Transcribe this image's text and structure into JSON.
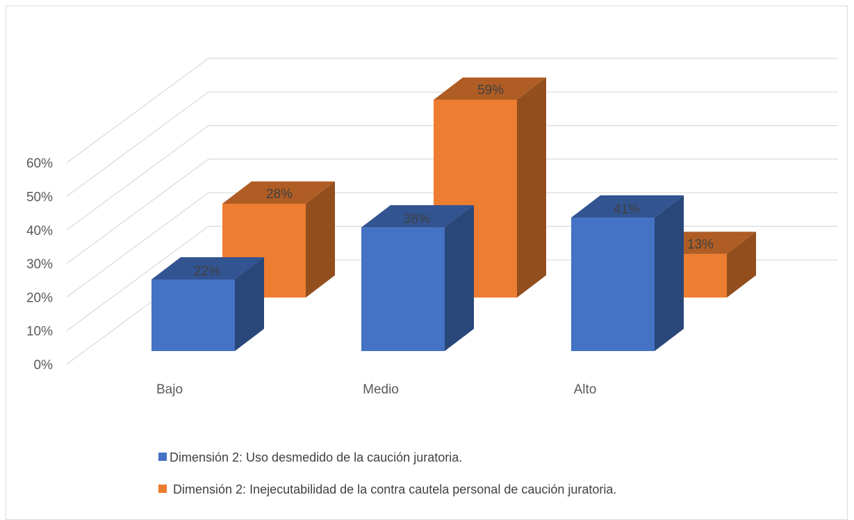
{
  "chart_data": {
    "type": "bar",
    "categories": [
      "Bajo",
      "Medio",
      "Alto"
    ],
    "series": [
      {
        "name": "Dimensión 2: Uso desmedido de la caución juratoria.",
        "values": [
          22,
          38,
          41
        ],
        "labels": [
          "22%",
          "38%",
          "41%"
        ],
        "color": "#4472C4"
      },
      {
        "name": "Dimensión 2: Inejecutabilidad de la contra cautela personal de caución juratoria.",
        "values": [
          28,
          59,
          13
        ],
        "labels": [
          "28%",
          "59%",
          "13%"
        ],
        "color": "#ED7D31"
      }
    ],
    "y_ticks": [
      "0%",
      "10%",
      "20%",
      "30%",
      "40%",
      "50%",
      "60%"
    ],
    "ylim": [
      0,
      60
    ],
    "grid": true,
    "legend_position": "bottom",
    "three_d": true
  }
}
